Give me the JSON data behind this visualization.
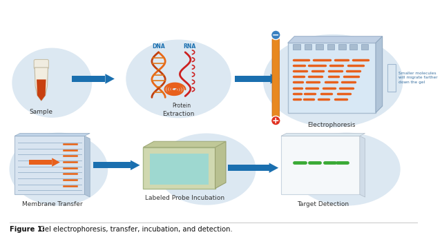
{
  "title_bold": "Figure 1:",
  "title_regular": " Gel electrophoresis, transfer, incubation, and detection.",
  "bg_color": "#ffffff",
  "row1_labels": [
    "Sample",
    "Extraction",
    "Electrophoresis"
  ],
  "row2_labels": [
    "Membrane Transfer",
    "Labeled Probe Incubation",
    "Target Detection"
  ],
  "dna_label": "DNA",
  "rna_label": "RNA",
  "protein_label": "Protein",
  "arrow_color": "#1a6faf",
  "orange_color": "#e8601c",
  "gel_band_color": "#e8601c",
  "minus_bg": "#4a90c4",
  "plus_bg": "#e03020",
  "detection_green": "#3aaa35",
  "small_mol_text": "Smaller molecules\nwill migrate farther\ndown the gel",
  "circle_bg": "#dce8f2"
}
